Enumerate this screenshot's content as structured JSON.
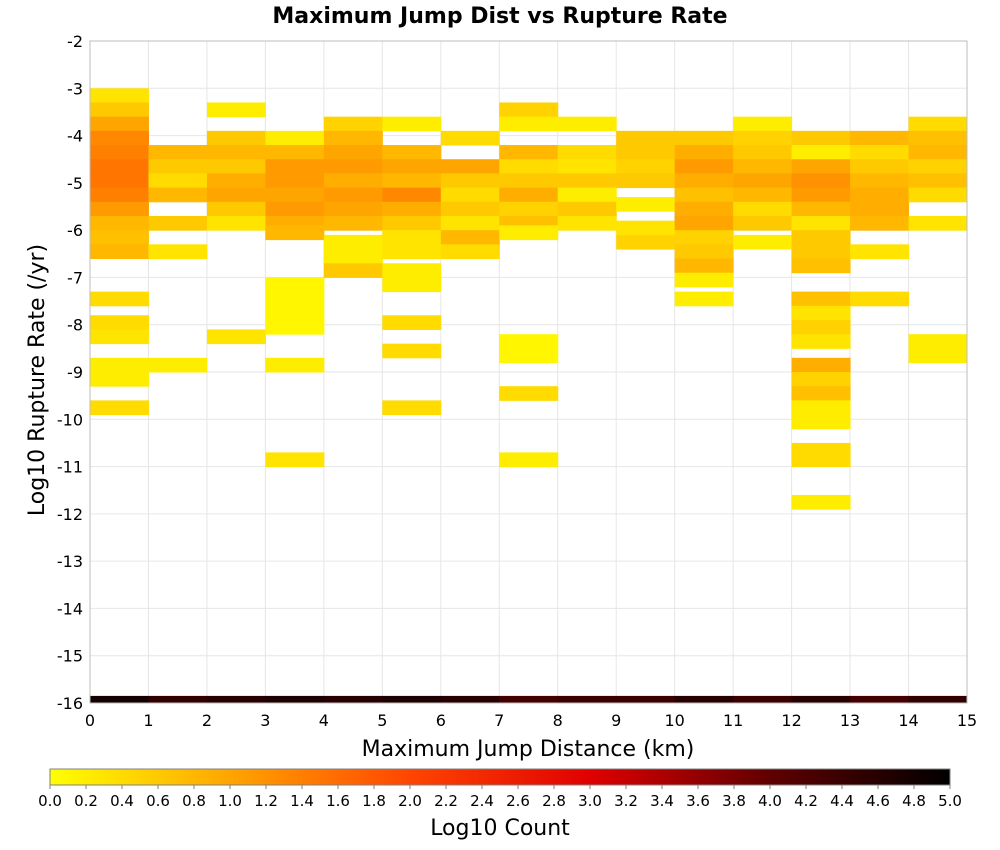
{
  "chart_data": {
    "type": "heatmap",
    "title": "Maximum Jump Dist vs Rupture Rate",
    "xlabel": "Maximum Jump Distance (km)",
    "ylabel": "Log10 Rupture Rate (/yr)",
    "xlim": [
      0,
      15
    ],
    "ylim": [
      -16,
      -2
    ],
    "x_ticks": [
      "0",
      "1",
      "2",
      "3",
      "4",
      "5",
      "6",
      "7",
      "8",
      "9",
      "10",
      "11",
      "12",
      "13",
      "14",
      "15"
    ],
    "y_ticks": [
      "-2",
      "-3",
      "-4",
      "-5",
      "-6",
      "-7",
      "-8",
      "-9",
      "-10",
      "-11",
      "-12",
      "-13",
      "-14",
      "-15",
      "-16"
    ],
    "grid": true,
    "bin_width_x": 1,
    "bin_height_y": 0.3,
    "colorbar": {
      "label": "Log10 Count",
      "min": 0.0,
      "max": 5.0,
      "ticks": [
        "0.0",
        "0.2",
        "0.4",
        "0.6",
        "0.8",
        "1.0",
        "1.2",
        "1.4",
        "1.6",
        "1.8",
        "2.0",
        "2.2",
        "2.4",
        "2.6",
        "2.8",
        "3.0",
        "3.2",
        "3.4",
        "3.6",
        "3.8",
        "4.0",
        "4.2",
        "4.4",
        "4.6",
        "4.8",
        "5.0"
      ],
      "colors": [
        "#ffff00",
        "#ffa500",
        "#ff4500",
        "#e00000",
        "#600000",
        "#000000"
      ]
    },
    "cells": [
      [
        0,
        -3.15,
        0.3
      ],
      [
        0,
        -3.45,
        0.6
      ],
      [
        0,
        -3.75,
        1.0
      ],
      [
        0,
        -4.05,
        1.3
      ],
      [
        0,
        -4.35,
        1.4
      ],
      [
        0,
        -4.65,
        1.5
      ],
      [
        0,
        -4.95,
        1.5
      ],
      [
        0,
        -5.25,
        1.4
      ],
      [
        0,
        -5.55,
        1.1
      ],
      [
        0,
        -5.85,
        0.8
      ],
      [
        0,
        -6.15,
        0.7
      ],
      [
        0,
        -6.45,
        0.8
      ],
      [
        0,
        -7.45,
        0.4
      ],
      [
        0,
        -7.95,
        0.4
      ],
      [
        0,
        -8.25,
        0.3
      ],
      [
        0,
        -8.85,
        0.2
      ],
      [
        0,
        -9.15,
        0.2
      ],
      [
        0,
        -9.75,
        0.4
      ],
      [
        1,
        -4.35,
        0.8
      ],
      [
        1,
        -4.65,
        0.6
      ],
      [
        1,
        -4.95,
        0.4
      ],
      [
        1,
        -5.25,
        0.8
      ],
      [
        1,
        -5.85,
        0.6
      ],
      [
        1,
        -6.45,
        0.3
      ],
      [
        1,
        -8.85,
        0.2
      ],
      [
        2,
        -3.45,
        0.2
      ],
      [
        2,
        -4.05,
        0.6
      ],
      [
        2,
        -4.35,
        0.8
      ],
      [
        2,
        -4.65,
        0.6
      ],
      [
        2,
        -4.95,
        0.9
      ],
      [
        2,
        -5.25,
        1.0
      ],
      [
        2,
        -5.55,
        0.6
      ],
      [
        2,
        -5.85,
        0.3
      ],
      [
        2,
        -8.25,
        0.3
      ],
      [
        3,
        -4.05,
        0.2
      ],
      [
        3,
        -4.35,
        0.8
      ],
      [
        3,
        -4.65,
        1.1
      ],
      [
        3,
        -4.95,
        1.1
      ],
      [
        3,
        -5.25,
        1.0
      ],
      [
        3,
        -5.55,
        1.1
      ],
      [
        3,
        -5.85,
        0.9
      ],
      [
        3,
        -6.05,
        0.8
      ],
      [
        3,
        -7.15,
        0.1
      ],
      [
        3,
        -7.45,
        0.1
      ],
      [
        3,
        -7.75,
        0.1
      ],
      [
        3,
        -8.05,
        0.1
      ],
      [
        3,
        -8.85,
        0.2
      ],
      [
        3,
        -10.85,
        0.3
      ],
      [
        4,
        -3.75,
        0.5
      ],
      [
        4,
        -4.05,
        0.8
      ],
      [
        4,
        -4.35,
        1.0
      ],
      [
        4,
        -4.65,
        1.1
      ],
      [
        4,
        -4.95,
        0.9
      ],
      [
        4,
        -5.25,
        1.1
      ],
      [
        4,
        -5.55,
        1.0
      ],
      [
        4,
        -5.85,
        0.8
      ],
      [
        4,
        -6.25,
        0.2
      ],
      [
        4,
        -6.55,
        0.2
      ],
      [
        4,
        -6.85,
        0.6
      ],
      [
        5,
        -3.75,
        0.2
      ],
      [
        5,
        -4.35,
        0.8
      ],
      [
        5,
        -4.65,
        1.0
      ],
      [
        5,
        -4.95,
        0.8
      ],
      [
        5,
        -5.25,
        1.3
      ],
      [
        5,
        -5.55,
        0.9
      ],
      [
        5,
        -5.85,
        0.6
      ],
      [
        5,
        -6.15,
        0.3
      ],
      [
        5,
        -6.45,
        0.3
      ],
      [
        5,
        -6.85,
        0.2
      ],
      [
        5,
        -7.15,
        0.2
      ],
      [
        5,
        -7.95,
        0.4
      ],
      [
        5,
        -8.55,
        0.4
      ],
      [
        5,
        -9.75,
        0.4
      ],
      [
        6,
        -4.05,
        0.4
      ],
      [
        6,
        -4.65,
        1.0
      ],
      [
        6,
        -4.95,
        0.6
      ],
      [
        6,
        -5.25,
        0.4
      ],
      [
        6,
        -5.55,
        0.6
      ],
      [
        6,
        -5.85,
        0.3
      ],
      [
        6,
        -6.15,
        0.8
      ],
      [
        6,
        -6.45,
        0.4
      ],
      [
        7,
        -3.45,
        0.5
      ],
      [
        7,
        -3.75,
        0.2
      ],
      [
        7,
        -4.35,
        0.8
      ],
      [
        7,
        -4.65,
        0.4
      ],
      [
        7,
        -4.95,
        0.6
      ],
      [
        7,
        -5.25,
        0.9
      ],
      [
        7,
        -5.55,
        0.5
      ],
      [
        7,
        -5.85,
        0.7
      ],
      [
        7,
        -6.05,
        0.2
      ],
      [
        7,
        -8.35,
        0.1
      ],
      [
        7,
        -8.65,
        0.1
      ],
      [
        7,
        -9.45,
        0.4
      ],
      [
        7,
        -10.85,
        0.2
      ],
      [
        8,
        -3.75,
        0.2
      ],
      [
        8,
        -4.35,
        0.4
      ],
      [
        8,
        -4.65,
        0.3
      ],
      [
        8,
        -4.95,
        0.6
      ],
      [
        8,
        -5.25,
        0.2
      ],
      [
        8,
        -5.55,
        0.6
      ],
      [
        8,
        -5.85,
        0.3
      ],
      [
        9,
        -4.05,
        0.6
      ],
      [
        9,
        -4.35,
        0.6
      ],
      [
        9,
        -4.65,
        0.5
      ],
      [
        9,
        -4.95,
        0.6
      ],
      [
        9,
        -5.45,
        0.2
      ],
      [
        9,
        -5.95,
        0.3
      ],
      [
        9,
        -6.25,
        0.5
      ],
      [
        10,
        -4.05,
        0.6
      ],
      [
        10,
        -4.35,
        0.9
      ],
      [
        10,
        -4.65,
        1.1
      ],
      [
        10,
        -4.95,
        0.9
      ],
      [
        10,
        -5.25,
        0.7
      ],
      [
        10,
        -5.55,
        0.9
      ],
      [
        10,
        -5.85,
        1.0
      ],
      [
        10,
        -6.15,
        0.5
      ],
      [
        10,
        -6.45,
        0.6
      ],
      [
        10,
        -6.75,
        0.8
      ],
      [
        10,
        -7.05,
        0.2
      ],
      [
        10,
        -7.45,
        0.2
      ],
      [
        11,
        -3.75,
        0.2
      ],
      [
        11,
        -4.05,
        0.5
      ],
      [
        11,
        -4.35,
        0.6
      ],
      [
        11,
        -4.65,
        0.8
      ],
      [
        11,
        -4.95,
        1.0
      ],
      [
        11,
        -5.25,
        0.8
      ],
      [
        11,
        -5.55,
        0.4
      ],
      [
        11,
        -5.85,
        0.6
      ],
      [
        11,
        -6.25,
        0.2
      ],
      [
        12,
        -4.05,
        0.6
      ],
      [
        12,
        -4.35,
        0.2
      ],
      [
        12,
        -4.65,
        1.0
      ],
      [
        12,
        -4.95,
        1.2
      ],
      [
        12,
        -5.25,
        1.1
      ],
      [
        12,
        -5.55,
        0.8
      ],
      [
        12,
        -5.85,
        0.3
      ],
      [
        12,
        -6.15,
        0.6
      ],
      [
        12,
        -6.45,
        0.6
      ],
      [
        12,
        -6.75,
        0.7
      ],
      [
        12,
        -7.45,
        0.7
      ],
      [
        12,
        -7.75,
        0.3
      ],
      [
        12,
        -8.05,
        0.5
      ],
      [
        12,
        -8.35,
        0.3
      ],
      [
        12,
        -8.85,
        0.9
      ],
      [
        12,
        -9.15,
        0.5
      ],
      [
        12,
        -9.45,
        0.7
      ],
      [
        12,
        -9.75,
        0.2
      ],
      [
        12,
        -10.05,
        0.2
      ],
      [
        12,
        -10.65,
        0.4
      ],
      [
        12,
        -10.85,
        0.4
      ],
      [
        12,
        -11.75,
        0.2
      ],
      [
        13,
        -4.05,
        0.8
      ],
      [
        13,
        -4.35,
        0.4
      ],
      [
        13,
        -4.65,
        0.6
      ],
      [
        13,
        -4.95,
        0.8
      ],
      [
        13,
        -5.25,
        0.9
      ],
      [
        13,
        -5.55,
        0.9
      ],
      [
        13,
        -5.85,
        0.8
      ],
      [
        13,
        -6.45,
        0.3
      ],
      [
        13,
        -7.45,
        0.4
      ],
      [
        14,
        -3.75,
        0.4
      ],
      [
        14,
        -4.05,
        0.7
      ],
      [
        14,
        -4.35,
        0.8
      ],
      [
        14,
        -4.65,
        0.5
      ],
      [
        14,
        -4.95,
        0.7
      ],
      [
        14,
        -5.25,
        0.4
      ],
      [
        14,
        -5.85,
        0.3
      ],
      [
        14,
        -8.35,
        0.2
      ],
      [
        14,
        -8.65,
        0.2
      ],
      [
        0,
        -16.0,
        4.8
      ],
      [
        1,
        -16.0,
        4.5
      ],
      [
        2,
        -16.0,
        4.6
      ],
      [
        3,
        -16.0,
        4.7
      ],
      [
        4,
        -16.0,
        4.6
      ],
      [
        5,
        -16.0,
        4.7
      ],
      [
        6,
        -16.0,
        4.6
      ],
      [
        7,
        -16.0,
        4.3
      ],
      [
        8,
        -16.0,
        4.4
      ],
      [
        9,
        -16.0,
        4.4
      ],
      [
        10,
        -16.0,
        4.6
      ],
      [
        11,
        -16.0,
        4.4
      ],
      [
        12,
        -16.0,
        4.6
      ],
      [
        13,
        -16.0,
        4.3
      ],
      [
        14,
        -16.0,
        4.5
      ]
    ]
  }
}
